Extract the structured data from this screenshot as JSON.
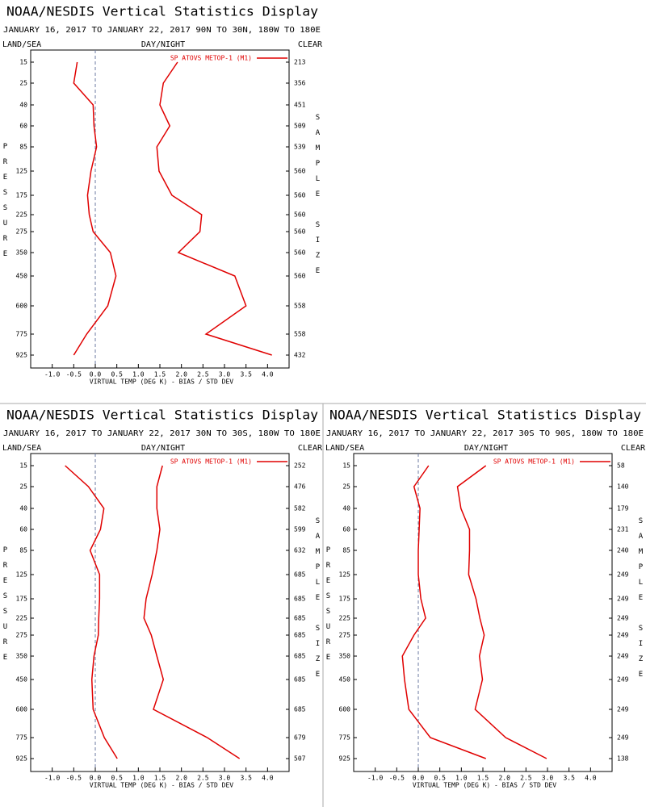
{
  "chart_data": [
    {
      "type": "line",
      "title": "NOAA/NESDIS Vertical Statistics Display",
      "subtitle": "JANUARY 16, 2017 TO JANUARY 22, 2017  90N TO 30N, 180W TO 180E",
      "left_header": "LAND/SEA",
      "center_header": "DAY/NIGHT",
      "right_header": "CLEAR",
      "y_label": "PRESSURE",
      "y2_label": "SAMPLE SIZE",
      "x_label": "VIRTUAL TEMP (DEG K) - BIAS / STD DEV",
      "categories": [
        "15",
        "25",
        "40",
        "60",
        "85",
        "125",
        "175",
        "225",
        "275",
        "350",
        "450",
        "600",
        "775",
        "925"
      ],
      "sample_size": [
        "213",
        "356",
        "451",
        "509",
        "539",
        "560",
        "560",
        "560",
        "560",
        "560",
        "560",
        "558",
        "558",
        "432"
      ],
      "series": [
        {
          "name": "SP ATOVS METOP-1 (M1)",
          "color": "#e00000",
          "values": [
            -0.42,
            -0.5,
            -0.05,
            -0.03,
            0.03,
            -0.1,
            -0.18,
            -0.14,
            -0.05,
            0.35,
            0.48,
            0.29,
            -0.2,
            -0.5
          ]
        },
        {
          "color": "#e00000",
          "values": [
            1.91,
            1.58,
            1.5,
            1.73,
            1.43,
            1.48,
            1.78,
            2.47,
            2.43,
            1.93,
            3.24,
            3.5,
            2.57,
            4.1
          ]
        }
      ],
      "xlim": [
        -1.5,
        4.5
      ],
      "xticks": [
        {
          "value": -1,
          "label": "-1.0"
        },
        -0.5,
        {
          "value": 0,
          "label": "0.0"
        },
        0.5,
        {
          "value": 1,
          "label": "1.0"
        },
        1.5,
        {
          "value": 2,
          "label": "2.0"
        },
        2.5,
        {
          "value": 3,
          "label": "3.0"
        },
        3.5,
        {
          "value": 4,
          "label": "4.0"
        }
      ]
    },
    {
      "type": "line",
      "title": "NOAA/NESDIS Vertical Statistics Display",
      "subtitle": "JANUARY 16, 2017 TO JANUARY 22, 2017  30N TO 30S, 180W TO 180E",
      "left_header": "LAND/SEA",
      "center_header": "DAY/NIGHT",
      "right_header": "CLEAR",
      "y_label": "PRESSURE",
      "y2_label": "SAMPLE SIZE",
      "x_label": "VIRTUAL TEMP (DEG K) - BIAS / STD DEV",
      "categories": [
        "15",
        "25",
        "40",
        "60",
        "85",
        "125",
        "175",
        "225",
        "275",
        "350",
        "450",
        "600",
        "775",
        "925"
      ],
      "sample_size": [
        "252",
        "476",
        "582",
        "599",
        "632",
        "685",
        "685",
        "685",
        "685",
        "685",
        "685",
        "685",
        "679",
        "507"
      ],
      "series": [
        {
          "name": "SP ATOVS METOP-1 (M1)",
          "color": "#e00000",
          "values": [
            -0.7,
            -0.16,
            0.2,
            0.12,
            -0.12,
            0.1,
            0.1,
            0.08,
            0.07,
            -0.03,
            -0.08,
            -0.05,
            0.21,
            0.51
          ]
        },
        {
          "color": "#e00000",
          "values": [
            1.56,
            1.43,
            1.43,
            1.5,
            1.43,
            1.32,
            1.18,
            1.13,
            1.3,
            1.43,
            1.58,
            1.35,
            2.6,
            3.35
          ]
        }
      ],
      "xlim": [
        -1.5,
        4.5
      ],
      "xticks": [
        {
          "value": -1,
          "label": "-1.0"
        },
        -0.5,
        {
          "value": 0,
          "label": "0.0"
        },
        0.5,
        {
          "value": 1,
          "label": "1.0"
        },
        1.5,
        {
          "value": 2,
          "label": "2.0"
        },
        2.5,
        {
          "value": 3,
          "label": "3.0"
        },
        3.5,
        {
          "value": 4,
          "label": "4.0"
        }
      ]
    },
    {
      "type": "line",
      "title": "NOAA/NESDIS Vertical Statistics Display",
      "subtitle": "JANUARY 16, 2017 TO JANUARY 22, 2017  30S TO 90S, 180W TO 180E",
      "left_header": "LAND/SEA",
      "center_header": "DAY/NIGHT",
      "right_header": "CLEAR",
      "y_label": "PRESSURE",
      "y2_label": "SAMPLE SIZE",
      "x_label": "VIRTUAL TEMP (DEG K) - BIAS / STD DEV",
      "categories": [
        "15",
        "25",
        "40",
        "60",
        "85",
        "125",
        "175",
        "225",
        "275",
        "350",
        "450",
        "600",
        "775",
        "925"
      ],
      "sample_size": [
        "58",
        "140",
        "179",
        "231",
        "240",
        "249",
        "249",
        "249",
        "249",
        "249",
        "249",
        "249",
        "249",
        "138"
      ],
      "series": [
        {
          "name": "SP ATOVS METOP-1 (M1)",
          "color": "#e00000",
          "values": [
            0.24,
            -0.1,
            0.04,
            0.02,
            0,
            0,
            0.06,
            0.17,
            -0.1,
            -0.37,
            -0.32,
            -0.22,
            0.28,
            1.57
          ]
        },
        {
          "color": "#e00000",
          "values": [
            1.57,
            0.91,
            0.99,
            1.19,
            1.19,
            1.17,
            1.34,
            1.43,
            1.53,
            1.42,
            1.49,
            1.32,
            2.03,
            2.98
          ]
        }
      ],
      "xlim": [
        -1.5,
        4.5
      ],
      "xticks": [
        {
          "value": -1,
          "label": "-1.0"
        },
        -0.5,
        {
          "value": 0,
          "label": "0.0"
        },
        0.5,
        {
          "value": 1,
          "label": "1.0"
        },
        1.5,
        {
          "value": 2,
          "label": "2.0"
        },
        2.5,
        {
          "value": 3,
          "label": "3.0"
        },
        3.5,
        {
          "value": 4,
          "label": "4.0"
        }
      ]
    }
  ]
}
